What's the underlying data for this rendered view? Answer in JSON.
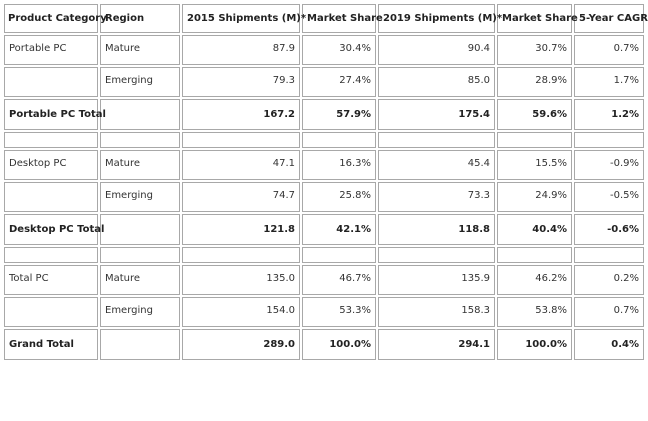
{
  "table": {
    "headers": [
      "Product Category",
      "Region",
      "2015 Shipments (M)*",
      "Market Share",
      "2019 Shipments (M)*",
      "Market Share",
      "5-Year CAGR"
    ],
    "rows": [
      {
        "type": "data",
        "category": "Portable PC",
        "region": "Mature",
        "ship2015": "87.9",
        "share2015": "30.4%",
        "ship2019": "90.4",
        "share2019": "30.7%",
        "cagr": "0.7%"
      },
      {
        "type": "data",
        "category": "",
        "region": "Emerging",
        "ship2015": "79.3",
        "share2015": "27.4%",
        "ship2019": "85.0",
        "share2019": "28.9%",
        "cagr": "1.7%"
      },
      {
        "type": "total",
        "category": "Portable PC Total",
        "region": "",
        "ship2015": "167.2",
        "share2015": "57.9%",
        "ship2019": "175.4",
        "share2019": "59.6%",
        "cagr": "1.2%"
      },
      {
        "type": "spacer"
      },
      {
        "type": "data",
        "category": "Desktop PC",
        "region": "Mature",
        "ship2015": "47.1",
        "share2015": "16.3%",
        "ship2019": "45.4",
        "share2019": "15.5%",
        "cagr": "-0.9%"
      },
      {
        "type": "data",
        "category": "",
        "region": "Emerging",
        "ship2015": "74.7",
        "share2015": "25.8%",
        "ship2019": "73.3",
        "share2019": "24.9%",
        "cagr": "-0.5%"
      },
      {
        "type": "total",
        "category": "Desktop PC Total",
        "region": "",
        "ship2015": "121.8",
        "share2015": "42.1%",
        "ship2019": "118.8",
        "share2019": "40.4%",
        "cagr": "-0.6%"
      },
      {
        "type": "spacer"
      },
      {
        "type": "data",
        "category": "Total PC",
        "region": "Mature",
        "ship2015": "135.0",
        "share2015": "46.7%",
        "ship2019": "135.9",
        "share2019": "46.2%",
        "cagr": "0.2%"
      },
      {
        "type": "data",
        "category": "",
        "region": "Emerging",
        "ship2015": "154.0",
        "share2015": "53.3%",
        "ship2019": "158.3",
        "share2019": "53.8%",
        "cagr": "0.7%"
      },
      {
        "type": "total",
        "category": "Grand Total",
        "region": "",
        "ship2015": "289.0",
        "share2015": "100.0%",
        "ship2019": "294.1",
        "share2019": "100.0%",
        "cagr": "0.4%"
      }
    ]
  }
}
